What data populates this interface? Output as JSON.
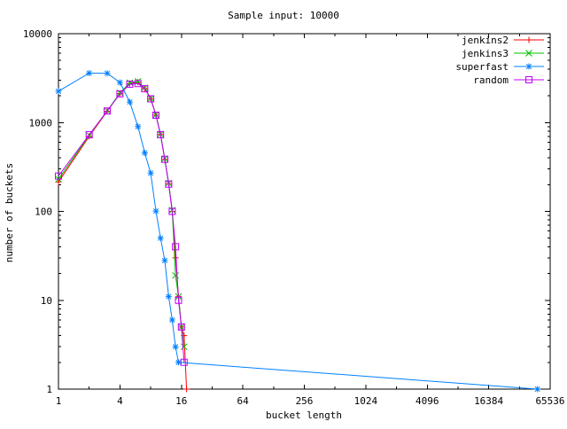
{
  "title": "Sample input: 10000",
  "chart_data": {
    "type": "line",
    "title": "Sample input: 10000",
    "xlabel": "bucket length",
    "ylabel": "number of buckets",
    "x_scale": "log2",
    "y_scale": "log10",
    "xlim": [
      1,
      65536
    ],
    "ylim": [
      1,
      10000
    ],
    "grid": false,
    "legend_position": "top-right-inside",
    "x_ticks": [
      1,
      4,
      16,
      64,
      256,
      1024,
      4096,
      16384,
      65536
    ],
    "x_tick_labels": [
      "1",
      "4",
      "16",
      "64",
      "256",
      "1024",
      "4096",
      "16384",
      "65536"
    ],
    "x_minor_ticks": [
      2,
      8,
      32,
      128,
      512,
      2048,
      8192,
      32768
    ],
    "y_ticks": [
      1,
      10,
      100,
      1000,
      10000
    ],
    "y_tick_labels": [
      "1",
      "10",
      "100",
      "1000",
      "10000"
    ],
    "axis_color": "#000000",
    "series": [
      {
        "name": "jenkins2",
        "color": "#ff0000",
        "marker": "plus",
        "points": [
          [
            1,
            215
          ],
          [
            2,
            700
          ],
          [
            3,
            1340
          ],
          [
            4,
            2120
          ],
          [
            5,
            2750
          ],
          [
            6,
            2850
          ],
          [
            7,
            2420
          ],
          [
            8,
            1860
          ],
          [
            9,
            1210
          ],
          [
            10,
            735
          ],
          [
            11,
            385
          ],
          [
            12,
            205
          ],
          [
            13,
            100
          ],
          [
            14,
            30
          ],
          [
            15,
            11
          ],
          [
            16,
            5
          ],
          [
            17,
            4
          ],
          [
            18,
            1
          ]
        ]
      },
      {
        "name": "jenkins3",
        "color": "#00c000",
        "marker": "cross",
        "points": [
          [
            1,
            230
          ],
          [
            2,
            720
          ],
          [
            3,
            1360
          ],
          [
            4,
            2150
          ],
          [
            5,
            2800
          ],
          [
            6,
            2900
          ],
          [
            7,
            2450
          ],
          [
            8,
            1870
          ],
          [
            9,
            1220
          ],
          [
            10,
            740
          ],
          [
            11,
            390
          ],
          [
            12,
            208
          ],
          [
            13,
            103
          ],
          [
            14,
            19
          ],
          [
            15,
            11
          ],
          [
            16,
            5
          ],
          [
            17,
            3
          ]
        ]
      },
      {
        "name": "superfast",
        "color": "#0080ff",
        "marker": "asterisk",
        "points": [
          [
            1,
            2250
          ],
          [
            2,
            3600
          ],
          [
            3,
            3580
          ],
          [
            4,
            2820
          ],
          [
            5,
            1700
          ],
          [
            6,
            900
          ],
          [
            7,
            455
          ],
          [
            8,
            270
          ],
          [
            9,
            101
          ],
          [
            10,
            50
          ],
          [
            11,
            28
          ],
          [
            12,
            11
          ],
          [
            13,
            6
          ],
          [
            14,
            3
          ],
          [
            15,
            2
          ],
          [
            49152,
            1
          ]
        ]
      },
      {
        "name": "random",
        "color": "#c000ff",
        "marker": "square",
        "points": [
          [
            1,
            250
          ],
          [
            2,
            730
          ],
          [
            3,
            1350
          ],
          [
            4,
            2100
          ],
          [
            5,
            2700
          ],
          [
            6,
            2750
          ],
          [
            7,
            2400
          ],
          [
            8,
            1850
          ],
          [
            9,
            1210
          ],
          [
            10,
            730
          ],
          [
            11,
            385
          ],
          [
            12,
            203
          ],
          [
            13,
            100
          ],
          [
            14,
            40
          ],
          [
            15,
            10
          ],
          [
            16,
            5
          ],
          [
            17,
            2
          ]
        ]
      }
    ]
  }
}
